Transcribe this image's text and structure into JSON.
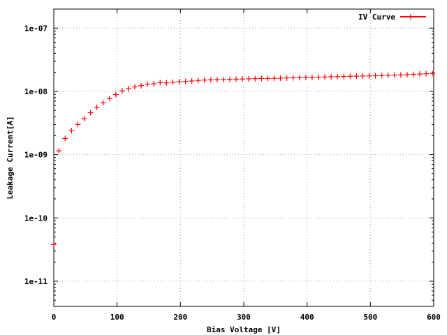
{
  "chart_data": {
    "type": "scatter",
    "title": "",
    "xlabel": "Bias Voltage [V]",
    "ylabel": "Leakage Current[A]",
    "xlim": [
      0,
      600
    ],
    "ylim": [
      4e-12,
      2e-07
    ],
    "yscale": "log",
    "grid": true,
    "legend_position": "top-right",
    "x_ticks": [
      {
        "value": 0,
        "label": "0"
      },
      {
        "value": 100,
        "label": "100"
      },
      {
        "value": 200,
        "label": "200"
      },
      {
        "value": 300,
        "label": "300"
      },
      {
        "value": 400,
        "label": "400"
      },
      {
        "value": 500,
        "label": "500"
      },
      {
        "value": 600,
        "label": "600"
      }
    ],
    "y_ticks": [
      {
        "value": 1e-11,
        "label": "1e-11"
      },
      {
        "value": 1e-10,
        "label": "1e-10"
      },
      {
        "value": 1e-09,
        "label": "1e-09"
      },
      {
        "value": 1e-08,
        "label": "1e-08"
      },
      {
        "value": 1e-07,
        "label": "1e-07"
      }
    ],
    "series": [
      {
        "name": "IV Curve",
        "color": "#ff0000",
        "marker": "plus",
        "x": [
          0,
          8,
          18,
          28,
          38,
          48,
          58,
          68,
          78,
          88,
          98,
          108,
          118,
          128,
          138,
          148,
          158,
          168,
          178,
          188,
          198,
          208,
          218,
          228,
          238,
          248,
          258,
          268,
          278,
          288,
          298,
          308,
          318,
          328,
          338,
          348,
          358,
          368,
          378,
          388,
          398,
          408,
          418,
          428,
          438,
          448,
          458,
          468,
          478,
          488,
          498,
          508,
          518,
          528,
          538,
          548,
          558,
          568,
          578,
          588,
          598
        ],
        "y": [
          3.8e-11,
          1.15e-09,
          1.8e-09,
          2.4e-09,
          3e-09,
          3.7e-09,
          4.6e-09,
          5.6e-09,
          6.6e-09,
          7.7e-09,
          8.9e-09,
          1.02e-08,
          1.1e-08,
          1.18e-08,
          1.23e-08,
          1.3e-08,
          1.32e-08,
          1.38e-08,
          1.36e-08,
          1.4e-08,
          1.42e-08,
          1.44e-08,
          1.46e-08,
          1.49e-08,
          1.51e-08,
          1.52e-08,
          1.53e-08,
          1.54e-08,
          1.55e-08,
          1.56e-08,
          1.57e-08,
          1.58e-08,
          1.59e-08,
          1.6e-08,
          1.6e-08,
          1.61e-08,
          1.62e-08,
          1.63e-08,
          1.64e-08,
          1.65e-08,
          1.66e-08,
          1.67e-08,
          1.68e-08,
          1.69e-08,
          1.7e-08,
          1.71e-08,
          1.72e-08,
          1.73e-08,
          1.74e-08,
          1.75e-08,
          1.76e-08,
          1.77e-08,
          1.78e-08,
          1.8e-08,
          1.81e-08,
          1.82e-08,
          1.84e-08,
          1.86e-08,
          1.88e-08,
          1.9e-08,
          1.92e-08
        ]
      }
    ]
  }
}
